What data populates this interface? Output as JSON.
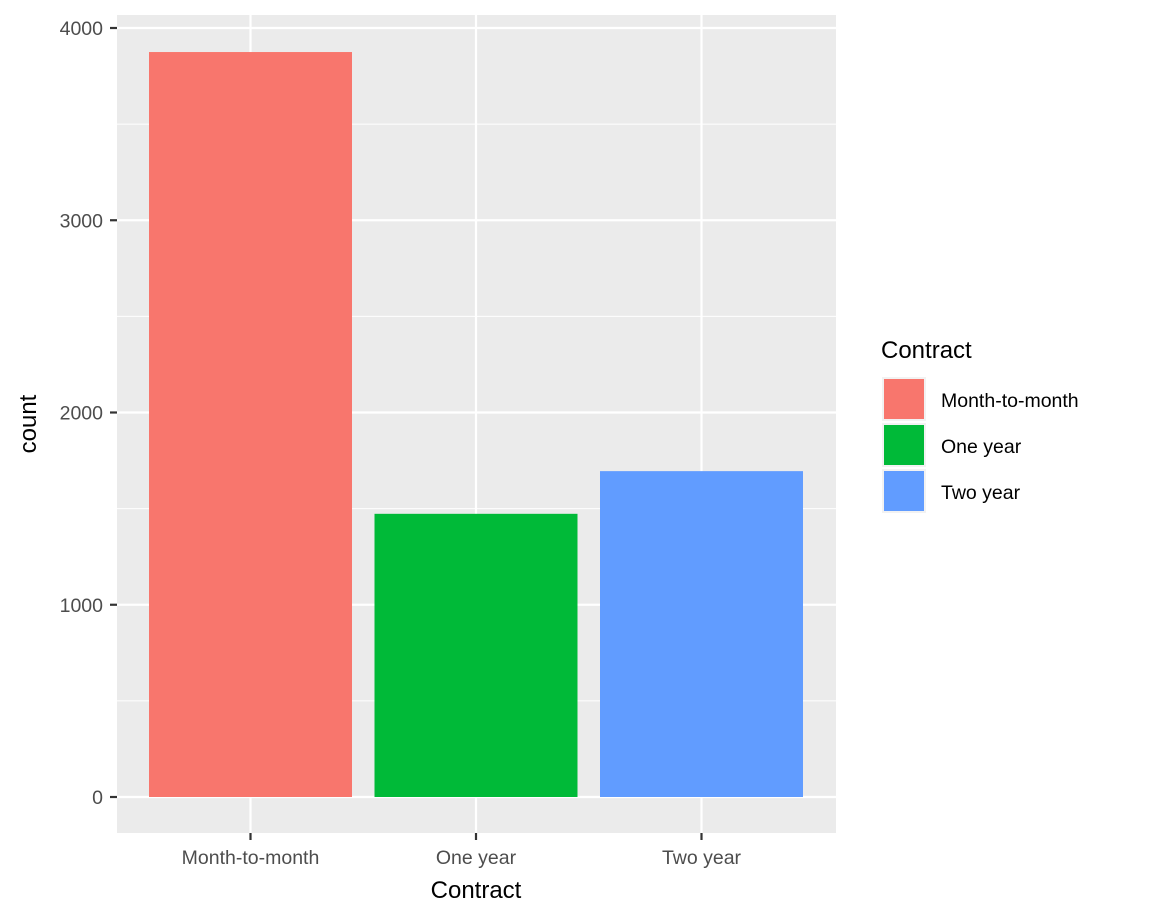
{
  "chart_data": {
    "type": "bar",
    "categories": [
      "Month-to-month",
      "One year",
      "Two year"
    ],
    "values": [
      3875,
      1473,
      1695
    ],
    "colors": [
      "#F8766D",
      "#00BA38",
      "#619CFF"
    ],
    "xlabel": "Contract",
    "ylabel": "count",
    "ylim": [
      0,
      4000
    ],
    "y_ticks": [
      0,
      1000,
      2000,
      3000,
      4000
    ],
    "y_tick_labels": [
      "0",
      "1000",
      "2000",
      "3000",
      "4000"
    ],
    "grid": true,
    "legend": {
      "title": "Contract",
      "position": "right",
      "entries": [
        "Month-to-month",
        "One year",
        "Two year"
      ]
    }
  }
}
